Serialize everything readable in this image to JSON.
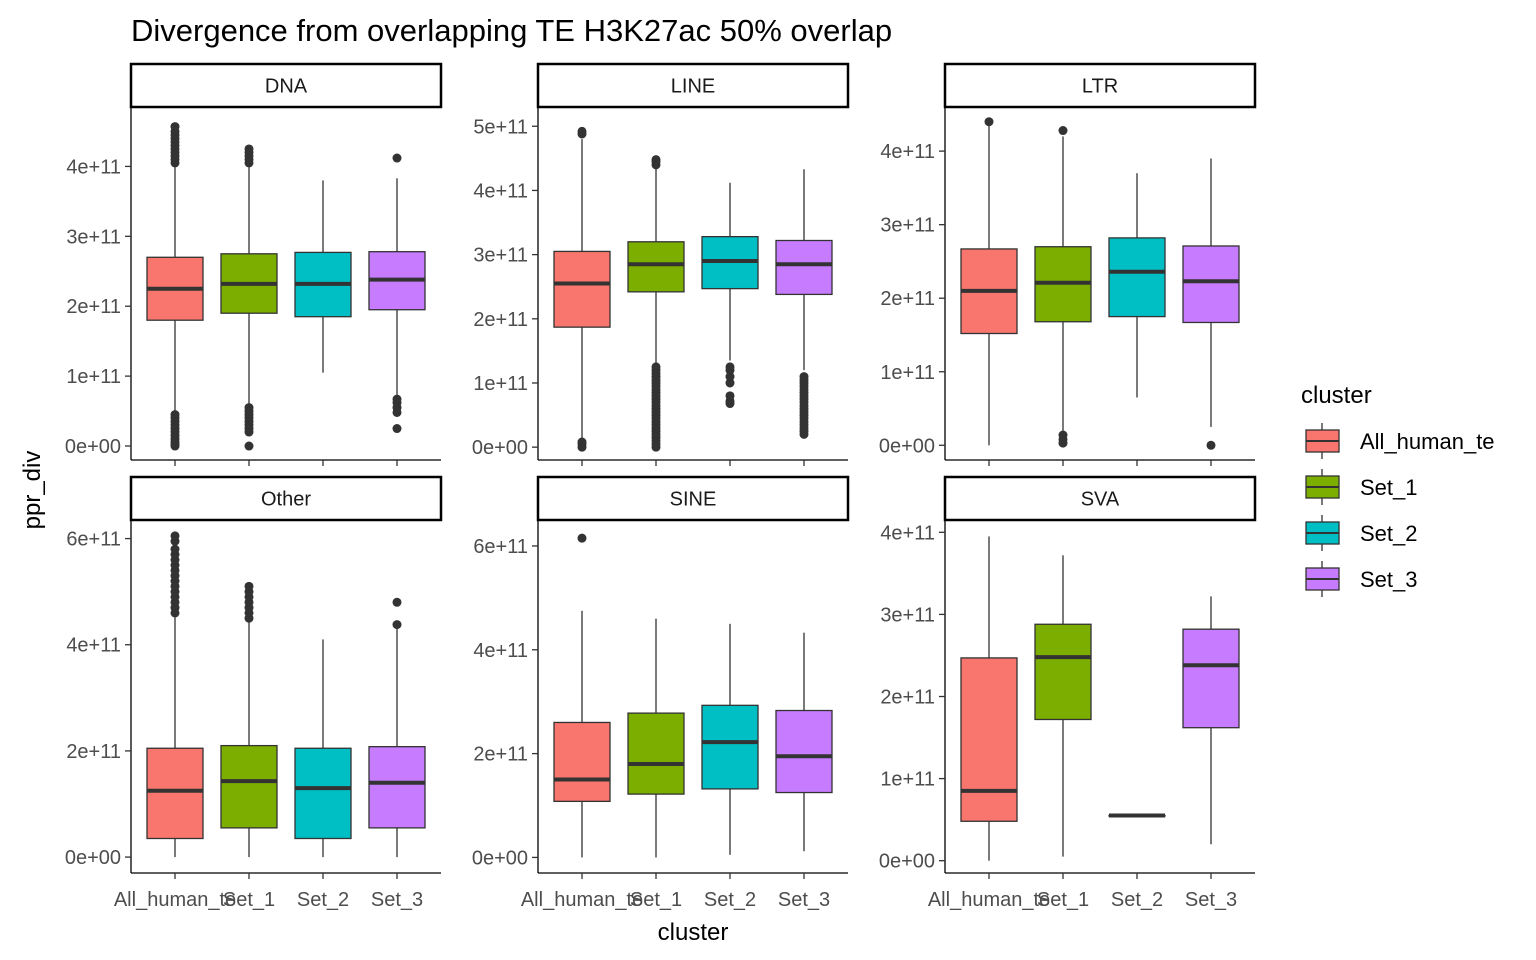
{
  "chart_data": {
    "type": "box",
    "title": "Divergence from overlapping TE H3K27ac 50% overlap",
    "xlabel": "cluster",
    "ylabel": "ppr_div",
    "categories": [
      "All_human_te",
      "Set_1",
      "Set_2",
      "Set_3"
    ],
    "legend": {
      "title": "cluster",
      "placement": "right",
      "entries": [
        "All_human_te",
        "Set_1",
        "Set_2",
        "Set_3"
      ]
    },
    "colors": {
      "All_human_te": "#F8766D",
      "Set_1": "#7CAE00",
      "Set_2": "#00BFC4",
      "Set_3": "#C77CFF",
      "median": "#333333",
      "whisker": "#333333",
      "outlier": "#333333",
      "strip_border": "#000000"
    },
    "grid": false,
    "facets": [
      {
        "label": "DNA",
        "ylim": [
          -20000000000.0,
          485000000000.0
        ],
        "yticks": [
          0,
          100000000000.0,
          200000000000.0,
          300000000000.0,
          400000000000.0
        ],
        "yticklabels": [
          "0e+00",
          "1e+11",
          "2e+11",
          "3e+11",
          "4e+11"
        ],
        "boxes": [
          {
            "q1": 180000000000.0,
            "median": 225000000000.0,
            "q3": 270000000000.0,
            "lower": 48000000000.0,
            "upper": 402000000000.0,
            "outliers": [
              0,
              3000000000.0,
              6000000000.0,
              10000000000.0,
              15000000000.0,
              20000000000.0,
              25000000000.0,
              30000000000.0,
              35000000000.0,
              40000000000.0,
              45000000000.0,
              405000000000.0,
              410000000000.0,
              415000000000.0,
              420000000000.0,
              425000000000.0,
              430000000000.0,
              435000000000.0,
              440000000000.0,
              445000000000.0,
              450000000000.0,
              457000000000.0
            ]
          },
          {
            "q1": 190000000000.0,
            "median": 232000000000.0,
            "q3": 275000000000.0,
            "lower": 60000000000.0,
            "upper": 402000000000.0,
            "outliers": [
              0,
              20000000000.0,
              25000000000.0,
              30000000000.0,
              35000000000.0,
              40000000000.0,
              45000000000.0,
              50000000000.0,
              55000000000.0,
              405000000000.0,
              410000000000.0,
              415000000000.0,
              420000000000.0,
              425000000000.0
            ]
          },
          {
            "q1": 185000000000.0,
            "median": 232000000000.0,
            "q3": 277000000000.0,
            "lower": 105000000000.0,
            "upper": 380000000000.0,
            "outliers": []
          },
          {
            "q1": 195000000000.0,
            "median": 238000000000.0,
            "q3": 278000000000.0,
            "lower": 72000000000.0,
            "upper": 383000000000.0,
            "outliers": [
              25000000000.0,
              48000000000.0,
              55000000000.0,
              62000000000.0,
              67000000000.0,
              412000000000.0
            ]
          }
        ]
      },
      {
        "label": "LINE",
        "ylim": [
          -20000000000.0,
          530000000000.0
        ],
        "yticks": [
          0,
          100000000000.0,
          200000000000.0,
          300000000000.0,
          400000000000.0,
          500000000000.0
        ],
        "yticklabels": [
          "0e+00",
          "1e+11",
          "2e+11",
          "3e+11",
          "4e+11",
          "5e+11"
        ],
        "boxes": [
          {
            "q1": 187000000000.0,
            "median": 255000000000.0,
            "q3": 305000000000.0,
            "lower": 10000000000.0,
            "upper": 480000000000.0,
            "outliers": [
              0,
              5000000000.0,
              8000000000.0,
              488000000000.0,
              492000000000.0
            ]
          },
          {
            "q1": 242000000000.0,
            "median": 285000000000.0,
            "q3": 320000000000.0,
            "lower": 130000000000.0,
            "upper": 435000000000.0,
            "outliers": [
              0,
              5000000000.0,
              10000000000.0,
              15000000000.0,
              20000000000.0,
              25000000000.0,
              30000000000.0,
              35000000000.0,
              40000000000.0,
              45000000000.0,
              50000000000.0,
              55000000000.0,
              60000000000.0,
              65000000000.0,
              70000000000.0,
              75000000000.0,
              80000000000.0,
              85000000000.0,
              90000000000.0,
              95000000000.0,
              100000000000.0,
              105000000000.0,
              110000000000.0,
              115000000000.0,
              120000000000.0,
              125000000000.0,
              440000000000.0,
              445000000000.0,
              448000000000.0
            ]
          },
          {
            "q1": 247000000000.0,
            "median": 290000000000.0,
            "q3": 328000000000.0,
            "lower": 135000000000.0,
            "upper": 412000000000.0,
            "outliers": [
              68000000000.0,
              72000000000.0,
              80000000000.0,
              100000000000.0,
              110000000000.0,
              120000000000.0,
              125000000000.0
            ]
          },
          {
            "q1": 238000000000.0,
            "median": 285000000000.0,
            "q3": 322000000000.0,
            "lower": 120000000000.0,
            "upper": 433000000000.0,
            "outliers": [
              20000000000.0,
              25000000000.0,
              30000000000.0,
              35000000000.0,
              40000000000.0,
              45000000000.0,
              50000000000.0,
              55000000000.0,
              60000000000.0,
              65000000000.0,
              70000000000.0,
              75000000000.0,
              80000000000.0,
              85000000000.0,
              90000000000.0,
              95000000000.0,
              100000000000.0,
              105000000000.0,
              110000000000.0
            ]
          }
        ]
      },
      {
        "label": "LTR",
        "ylim": [
          -20000000000.0,
          460000000000.0
        ],
        "yticks": [
          0,
          100000000000.0,
          200000000000.0,
          300000000000.0,
          400000000000.0
        ],
        "yticklabels": [
          "0e+00",
          "1e+11",
          "2e+11",
          "3e+11",
          "4e+11"
        ],
        "boxes": [
          {
            "q1": 152000000000.0,
            "median": 210000000000.0,
            "q3": 267000000000.0,
            "lower": 0,
            "upper": 437000000000.0,
            "outliers": [
              440000000000.0
            ]
          },
          {
            "q1": 168000000000.0,
            "median": 221000000000.0,
            "q3": 270000000000.0,
            "lower": 20000000000.0,
            "upper": 420000000000.0,
            "outliers": [
              3000000000.0,
              8000000000.0,
              14000000000.0,
              428000000000.0
            ]
          },
          {
            "q1": 175000000000.0,
            "median": 236000000000.0,
            "q3": 282000000000.0,
            "lower": 65000000000.0,
            "upper": 370000000000.0,
            "outliers": []
          },
          {
            "q1": 167000000000.0,
            "median": 223000000000.0,
            "q3": 271000000000.0,
            "lower": 25000000000.0,
            "upper": 390000000000.0,
            "outliers": [
              0
            ]
          }
        ]
      },
      {
        "label": "Other",
        "ylim": [
          -30000000000.0,
          635000000000.0
        ],
        "yticks": [
          0,
          200000000000.0,
          400000000000.0,
          600000000000.0
        ],
        "yticklabels": [
          "0e+00",
          "2e+11",
          "4e+11",
          "6e+11"
        ],
        "boxes": [
          {
            "q1": 35000000000.0,
            "median": 125000000000.0,
            "q3": 205000000000.0,
            "lower": 0,
            "upper": 455000000000.0,
            "outliers": [
              460000000000.0,
              470000000000.0,
              480000000000.0,
              490000000000.0,
              500000000000.0,
              510000000000.0,
              520000000000.0,
              530000000000.0,
              540000000000.0,
              550000000000.0,
              560000000000.0,
              570000000000.0,
              580000000000.0,
              595000000000.0,
              605000000000.0
            ]
          },
          {
            "q1": 55000000000.0,
            "median": 143000000000.0,
            "q3": 210000000000.0,
            "lower": 0,
            "upper": 445000000000.0,
            "outliers": [
              450000000000.0,
              460000000000.0,
              470000000000.0,
              480000000000.0,
              490000000000.0,
              500000000000.0,
              510000000000.0
            ]
          },
          {
            "q1": 35000000000.0,
            "median": 130000000000.0,
            "q3": 205000000000.0,
            "lower": 0,
            "upper": 410000000000.0,
            "outliers": []
          },
          {
            "q1": 55000000000.0,
            "median": 140000000000.0,
            "q3": 208000000000.0,
            "lower": 0,
            "upper": 430000000000.0,
            "outliers": [
              438000000000.0,
              480000000000.0
            ]
          }
        ]
      },
      {
        "label": "SINE",
        "ylim": [
          -30000000000.0,
          650000000000.0
        ],
        "yticks": [
          0,
          200000000000.0,
          400000000000.0,
          600000000000.0
        ],
        "yticklabels": [
          "0e+00",
          "2e+11",
          "4e+11",
          "6e+11"
        ],
        "boxes": [
          {
            "q1": 108000000000.0,
            "median": 150000000000.0,
            "q3": 260000000000.0,
            "lower": 0,
            "upper": 475000000000.0,
            "outliers": [
              615000000000.0
            ]
          },
          {
            "q1": 122000000000.0,
            "median": 180000000000.0,
            "q3": 278000000000.0,
            "lower": 0,
            "upper": 460000000000.0,
            "outliers": []
          },
          {
            "q1": 132000000000.0,
            "median": 222000000000.0,
            "q3": 293000000000.0,
            "lower": 5000000000.0,
            "upper": 450000000000.0,
            "outliers": []
          },
          {
            "q1": 125000000000.0,
            "median": 195000000000.0,
            "q3": 283000000000.0,
            "lower": 12000000000.0,
            "upper": 433000000000.0,
            "outliers": []
          }
        ]
      },
      {
        "label": "SVA",
        "ylim": [
          -15000000000.0,
          415000000000.0
        ],
        "yticks": [
          0,
          100000000000.0,
          200000000000.0,
          300000000000.0,
          400000000000.0
        ],
        "yticklabels": [
          "0e+00",
          "1e+11",
          "2e+11",
          "3e+11",
          "4e+11"
        ],
        "boxes": [
          {
            "q1": 48000000000.0,
            "median": 85000000000.0,
            "q3": 247000000000.0,
            "lower": 0,
            "upper": 395000000000.0,
            "outliers": []
          },
          {
            "q1": 172000000000.0,
            "median": 248000000000.0,
            "q3": 288000000000.0,
            "lower": 5000000000.0,
            "upper": 372000000000.0,
            "outliers": []
          },
          {
            "q1": 55000000000.0,
            "median": 55000000000.0,
            "q3": 55000000000.0,
            "lower": 55000000000.0,
            "upper": 55000000000.0,
            "outliers": []
          },
          {
            "q1": 162000000000.0,
            "median": 238000000000.0,
            "q3": 282000000000.0,
            "lower": 20000000000.0,
            "upper": 322000000000.0,
            "outliers": []
          }
        ]
      }
    ]
  }
}
